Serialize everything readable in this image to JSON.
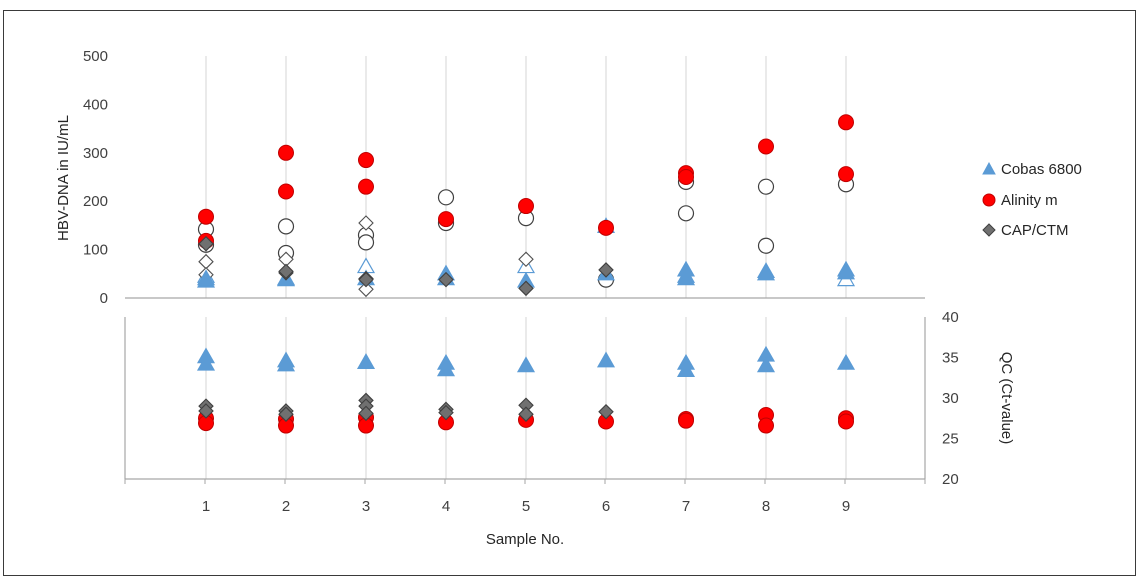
{
  "chart_data": [
    {
      "type": "scatter",
      "panel": "top",
      "title": "",
      "xlabel": "Sample No.",
      "ylabel": "HBV-DNA in IU/mL",
      "ylim": [
        0,
        500
      ],
      "yticks": [
        0,
        100,
        200,
        300,
        400,
        500
      ],
      "xlim": [
        0.5,
        9.5
      ],
      "grid": "vertical lines at each sample",
      "series": [
        {
          "name": "Cobas 6800",
          "marker": "triangle",
          "color": "#5b9bd5",
          "filled": [
            [
              1,
              35
            ],
            [
              1,
              40
            ],
            [
              2,
              40
            ],
            [
              2,
              38
            ],
            [
              3,
              40
            ],
            [
              4,
              50
            ],
            [
              4,
              40
            ],
            [
              5,
              35
            ],
            [
              6,
              50
            ],
            [
              6,
              148
            ],
            [
              7,
              58
            ],
            [
              7,
              45
            ],
            [
              7,
              40
            ],
            [
              8,
              55
            ],
            [
              8,
              50
            ],
            [
              9,
              58
            ],
            [
              9,
              52
            ]
          ],
          "open": [
            [
              1,
              45
            ],
            [
              3,
              65
            ],
            [
              5,
              65
            ],
            [
              9,
              38
            ]
          ]
        },
        {
          "name": "Alinity m",
          "marker": "circle",
          "color": "#ff0000",
          "filled": [
            [
              1,
              168
            ],
            [
              1,
              118
            ],
            [
              2,
              300
            ],
            [
              2,
              220
            ],
            [
              3,
              285
            ],
            [
              3,
              230
            ],
            [
              4,
              163
            ],
            [
              5,
              190
            ],
            [
              6,
              145
            ],
            [
              7,
              258
            ],
            [
              7,
              250
            ],
            [
              8,
              313
            ],
            [
              9,
              363
            ],
            [
              9,
              256
            ]
          ],
          "open": [
            [
              1,
              142
            ],
            [
              1,
              110
            ],
            [
              2,
              148
            ],
            [
              2,
              93
            ],
            [
              3,
              130
            ],
            [
              3,
              115
            ],
            [
              4,
              208
            ],
            [
              4,
              155
            ],
            [
              5,
              165
            ],
            [
              6,
              38
            ],
            [
              7,
              240
            ],
            [
              7,
              175
            ],
            [
              8,
              230
            ],
            [
              8,
              108
            ],
            [
              9,
              235
            ]
          ]
        },
        {
          "name": "CAP/CTM",
          "marker": "diamond",
          "color": "#707070",
          "filled": [
            [
              1,
              112
            ],
            [
              2,
              52
            ],
            [
              2,
              55
            ],
            [
              3,
              40
            ],
            [
              3,
              38
            ],
            [
              4,
              38
            ],
            [
              5,
              20
            ],
            [
              6,
              58
            ]
          ],
          "open": [
            [
              1,
              75
            ],
            [
              1,
              48
            ],
            [
              2,
              80
            ],
            [
              3,
              155
            ],
            [
              3,
              18
            ],
            [
              5,
              80
            ]
          ]
        }
      ]
    },
    {
      "type": "scatter",
      "panel": "bottom",
      "title": "",
      "xlabel": "Sample No.",
      "ylabel": "QC (Ct-value)",
      "ylim": [
        20,
        40
      ],
      "yticks": [
        20,
        25,
        30,
        35,
        40
      ],
      "x_tick_labels": [
        "1",
        "2",
        "3",
        "4",
        "5",
        "6",
        "7",
        "8",
        "9"
      ],
      "series": [
        {
          "name": "Cobas 6800",
          "marker": "triangle",
          "color": "#5b9bd5",
          "filled": [
            [
              1,
              35.1
            ],
            [
              1,
              34.2
            ],
            [
              2,
              34.6
            ],
            [
              2,
              34.1
            ],
            [
              3,
              34.4
            ],
            [
              4,
              34.3
            ],
            [
              4,
              33.5
            ],
            [
              5,
              34.0
            ],
            [
              6,
              34.6
            ],
            [
              7,
              34.3
            ],
            [
              7,
              33.4
            ],
            [
              8,
              35.3
            ],
            [
              8,
              34.0
            ],
            [
              9,
              34.3
            ]
          ]
        },
        {
          "name": "Alinity m",
          "marker": "circle",
          "color": "#ff0000",
          "filled": [
            [
              1,
              27.5
            ],
            [
              1,
              26.9
            ],
            [
              2,
              27.4
            ],
            [
              2,
              26.6
            ],
            [
              3,
              27.6
            ],
            [
              3,
              26.6
            ],
            [
              4,
              27.0
            ],
            [
              5,
              27.3
            ],
            [
              6,
              27.1
            ],
            [
              7,
              27.4
            ],
            [
              7,
              27.2
            ],
            [
              8,
              27.9
            ],
            [
              8,
              26.6
            ],
            [
              9,
              27.5
            ],
            [
              9,
              27.1
            ]
          ]
        },
        {
          "name": "CAP/CTM",
          "marker": "diamond",
          "color": "#707070",
          "filled": [
            [
              1,
              29.0
            ],
            [
              1,
              28.4
            ],
            [
              2,
              28.4
            ],
            [
              2,
              28.0
            ],
            [
              3,
              29.7
            ],
            [
              3,
              29.0
            ],
            [
              3,
              28.1
            ],
            [
              4,
              28.6
            ],
            [
              4,
              28.2
            ],
            [
              5,
              29.1
            ],
            [
              5,
              28.0
            ],
            [
              6,
              28.3
            ]
          ]
        }
      ]
    }
  ],
  "legend": {
    "placement": "right",
    "items": [
      {
        "label": "Cobas 6800",
        "marker": "triangle",
        "color": "#5b9bd5"
      },
      {
        "label": "Alinity m",
        "marker": "circle",
        "color": "#ff0000"
      },
      {
        "label": "CAP/CTM",
        "marker": "diamond",
        "color": "#707070"
      }
    ]
  }
}
